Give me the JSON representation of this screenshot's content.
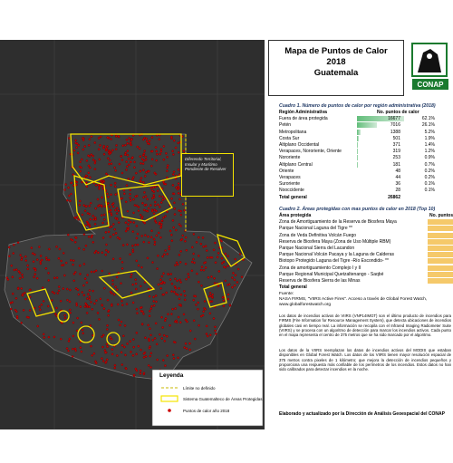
{
  "header": {
    "title_lines": [
      "Mapa de Puntos de Calor",
      "2018",
      "Guatemala"
    ],
    "logo": "CONAP"
  },
  "map": {
    "annotation": "Diferendo Territorial, Insular y Marítimo Pendiente de Resolver",
    "legend": {
      "title": "Leyenda",
      "items": [
        "Límite no definido",
        "Sistema Guatemalteco de Áreas Protegidas",
        "Puntos de calor año 2018"
      ]
    }
  },
  "table1": {
    "caption": "Cuadro 1. Número de puntos de calor por región administrativa (2018)",
    "columns": [
      "Región Administrativa",
      "No. puntos de calor"
    ],
    "rows": [
      [
        "Fuera de área protegida",
        16677,
        "62.1%"
      ],
      [
        "Petén",
        7016,
        "26.1%"
      ],
      [
        "Metropolitana",
        1388,
        "5.2%"
      ],
      [
        "Costa Sur",
        501,
        "1.9%"
      ],
      [
        "Altiplano Occidental",
        371,
        "1.4%"
      ],
      [
        "Verapaces, Nororiente, Oriente",
        319,
        "1.2%"
      ],
      [
        "Nororiente",
        253,
        "0.9%"
      ],
      [
        "Altiplano Central",
        181,
        "0.7%"
      ],
      [
        "Oriente",
        48,
        "0.2%"
      ],
      [
        "Verapaces",
        44,
        "0.2%"
      ],
      [
        "Suroriente",
        36,
        "0.1%"
      ],
      [
        "Nooccidente",
        28,
        "0.1%"
      ]
    ],
    "total": [
      "Total general",
      26862
    ]
  },
  "table2": {
    "caption": "Cuadro 2. Áreas protegidas con mas puntos de calor en 2018 (Top 10)",
    "columns": [
      "Área protegida",
      "No. puntos de calor"
    ],
    "rows": [
      "Zona de Amortiguamiento de la Reserva de Biosfera Maya",
      "Parque Nacional Laguna del Tigre **",
      "Zona de Veda Definitiva Volcán Fuego",
      "Reserva de Biosfera Maya (Zona de Uso Múltiple RBM)",
      "Parque Nacional Sierra del Lacandon",
      "Parque Nacional Volcán Pacaya y la Laguna de Calderas",
      "Biotopo Protegido Laguna del Tigre -Río Escondido- **",
      "Zona de amortiguamiento Complejo I y II",
      "Parque Regional Municipal Quetzaltenango - Saqbé",
      "Reserva de Biosfera Sierra de las Minas"
    ],
    "total": "Total general"
  },
  "source": [
    "Fuente:",
    "NASA FIRMS, \"VIIRS Active Fires\". Acceso a través de Global Forest Watch,",
    "www.globalforestwatch.org"
  ],
  "notes": [
    "Los datos de incendios activos de VIIRS (VNP14IMGT) son el último producto de incendios para FIRMS (Fire Information for Resource Management System), que detecta ubicaciones de incendios globales casi en tiempo real. La información se recopila con el Infrared Imaging Radiometer Suite (VIIRS) y se procesa con un algoritmo de detección para marcar los incendios activos. Cada punto en el mapa representa el centro de 375 metros que se ha sido marcado por el algoritmo.",
    "Los datos de la VIIRS reemplazan los datos de incendios activos del MODIS que estaban disponibles en Global Forest Watch. Los datos de los VIIRS tienen mayor resolución espacial de 375 metros contra pixeles de 1 kilómetro; que mejora la detección de incendios pequeños y proporciona una respuesta más confiable de los perímetros de los incendios. Estos datos no han sido calibrados para detectar incendios en la noche."
  ],
  "footer": "Elaborado y actualizado por la Dirección de Análisis Geoespacial del CONAP"
}
